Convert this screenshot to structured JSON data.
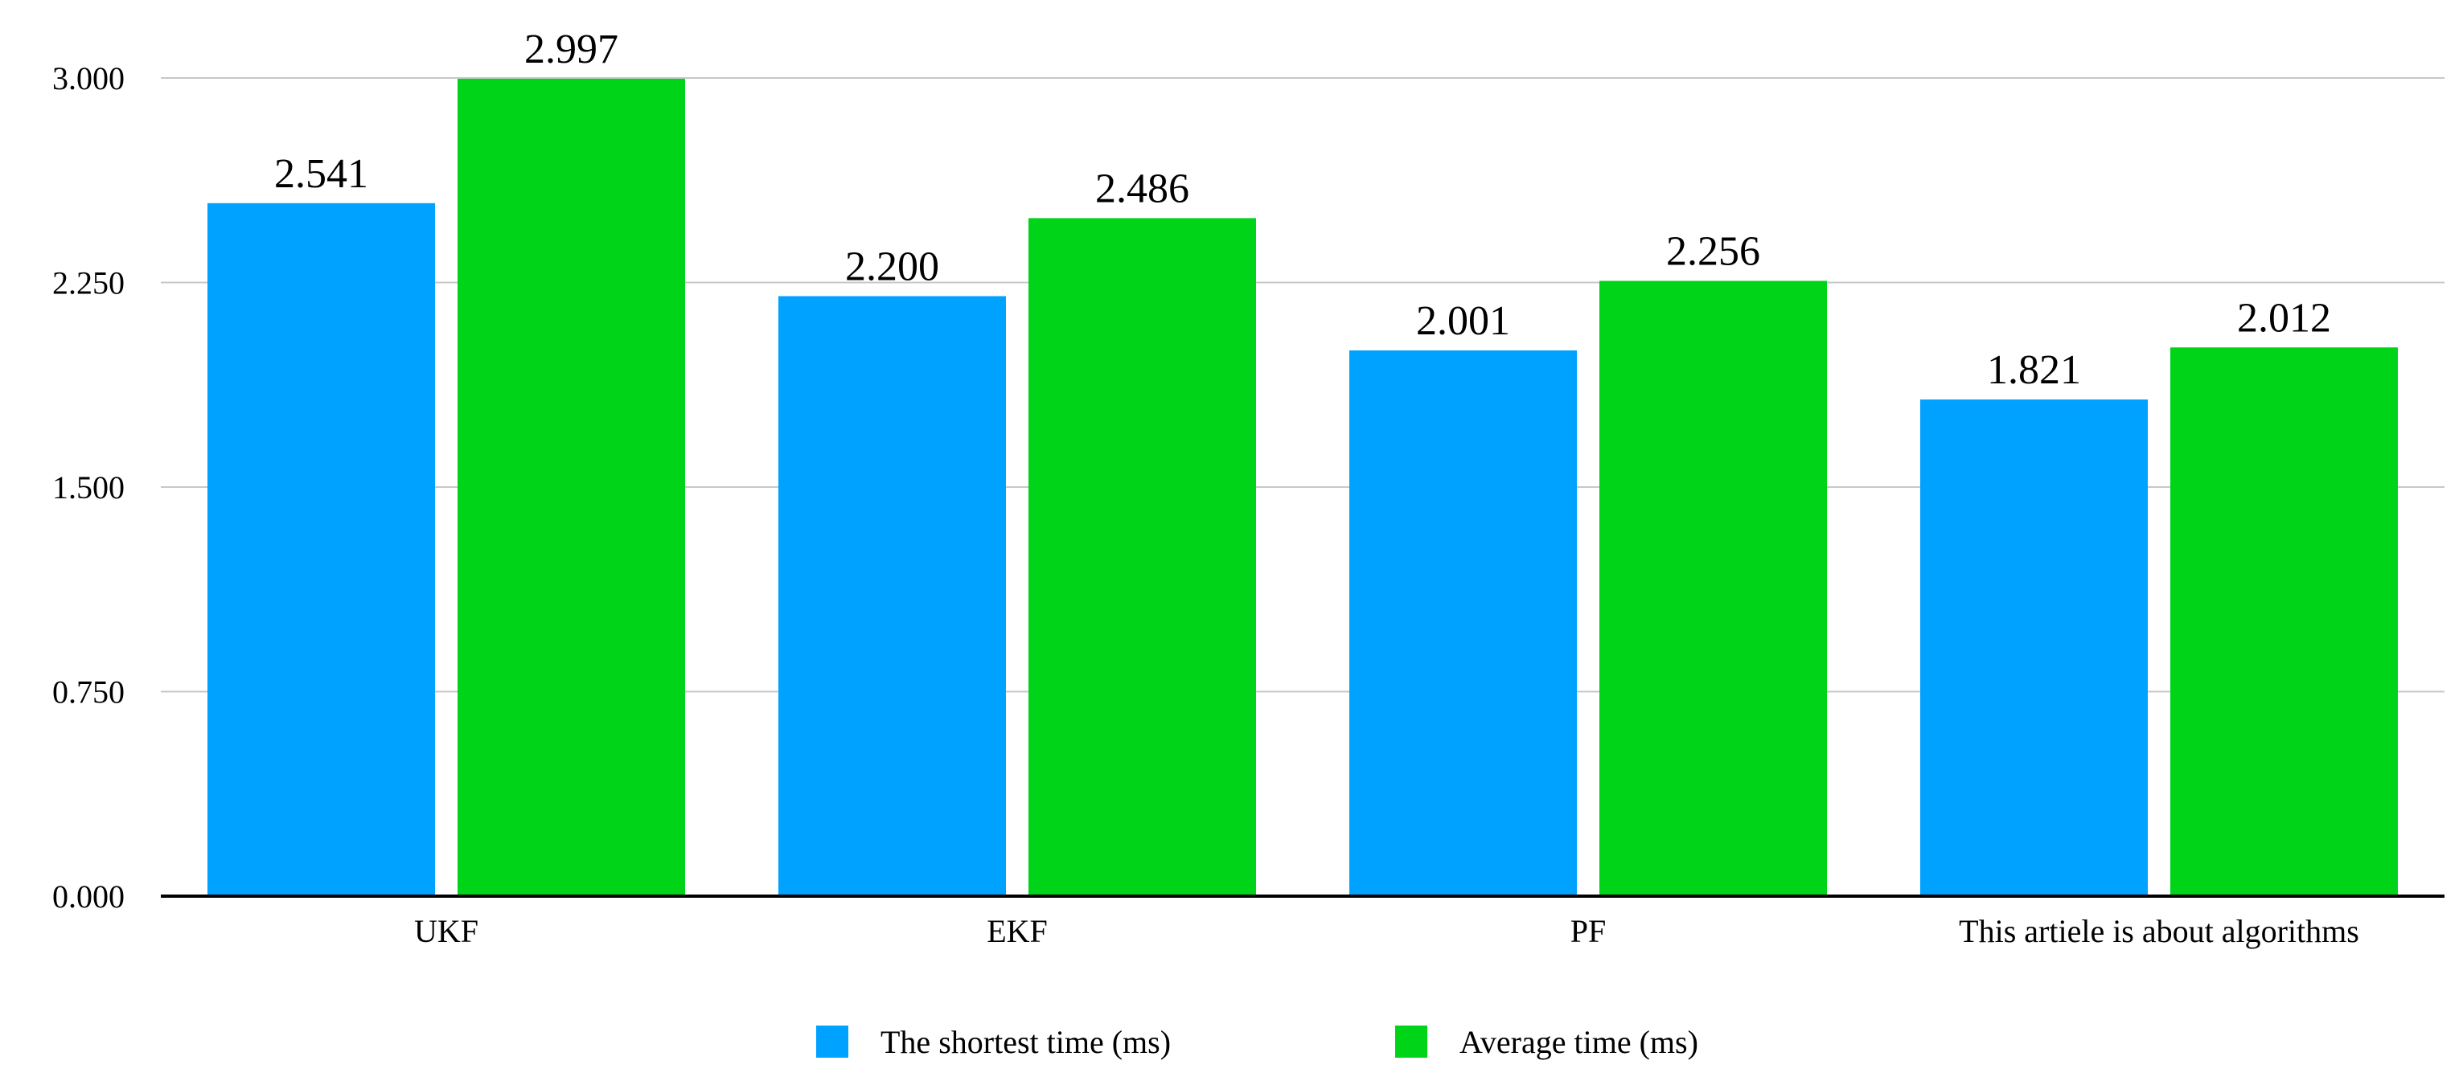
{
  "chart_data": {
    "type": "bar",
    "categories": [
      "UKF",
      "EKF",
      "PF",
      "This artiele is about algorithms"
    ],
    "series": [
      {
        "name": "The shortest time (ms)",
        "values": [
          2.541,
          2.2,
          2.001,
          1.821
        ],
        "color": "#00A2FF"
      },
      {
        "name": "Average time (ms)",
        "values": [
          2.997,
          2.486,
          2.256,
          2.012
        ],
        "color": "#00D418"
      }
    ],
    "value_labels": [
      [
        "2.541",
        "2.200",
        "2.001",
        "1.821"
      ],
      [
        "2.997",
        "2.486",
        "2.256",
        "2.012"
      ]
    ],
    "y_ticks": [
      0,
      0.75,
      1.5,
      2.25,
      3.0
    ],
    "y_tick_labels": [
      "0.000",
      "0.750",
      "1.500",
      "2.250",
      "3.000"
    ],
    "ylim": [
      0,
      3.0
    ],
    "title": "",
    "xlabel": "",
    "ylabel": "",
    "grid": true,
    "legend_position": "bottom",
    "gridline_color": "#C8C8C8",
    "axis_color": "#000000"
  }
}
